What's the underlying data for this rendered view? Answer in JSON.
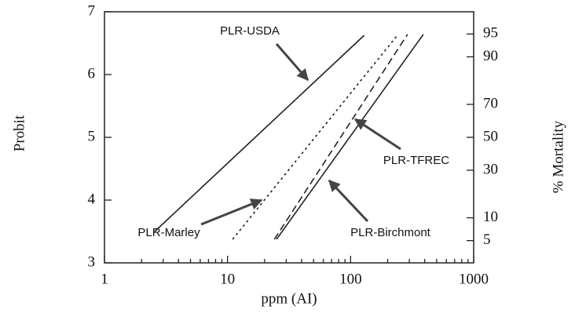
{
  "chart_data": {
    "type": "line",
    "x_label": "ppm (AI)",
    "y_label": "Probit",
    "y2_label": "% Mortality",
    "xscale": "log",
    "xlim": [
      1,
      1000
    ],
    "xticks": [
      1,
      10,
      100,
      1000
    ],
    "ylim": [
      3,
      7
    ],
    "yticks": [
      3,
      4,
      5,
      6,
      7
    ],
    "y2scale": "probit",
    "y2lim": [
      2.28,
      97.72
    ],
    "y2ticks": [
      5,
      10,
      30,
      50,
      70,
      90,
      95
    ],
    "series": [
      {
        "name": "PLR-USDA",
        "color": "#222222",
        "dash": "solid",
        "x": [
          2.56,
          129
        ],
        "values": [
          3.5,
          6.625
        ]
      },
      {
        "name": "PLR-Marley",
        "color": "#222222",
        "dash": "dotted",
        "x": [
          11,
          240
        ],
        "values": [
          3.375,
          6.625
        ]
      },
      {
        "name": "PLR-TFREC",
        "color": "#222222",
        "dash": "dashed",
        "x": [
          24,
          290
        ],
        "values": [
          3.375,
          6.64
        ]
      },
      {
        "name": "PLR-Birchmont",
        "color": "#222222",
        "dash": "solid",
        "x": [
          25,
          390
        ],
        "values": [
          3.375,
          6.64
        ]
      }
    ]
  }
}
